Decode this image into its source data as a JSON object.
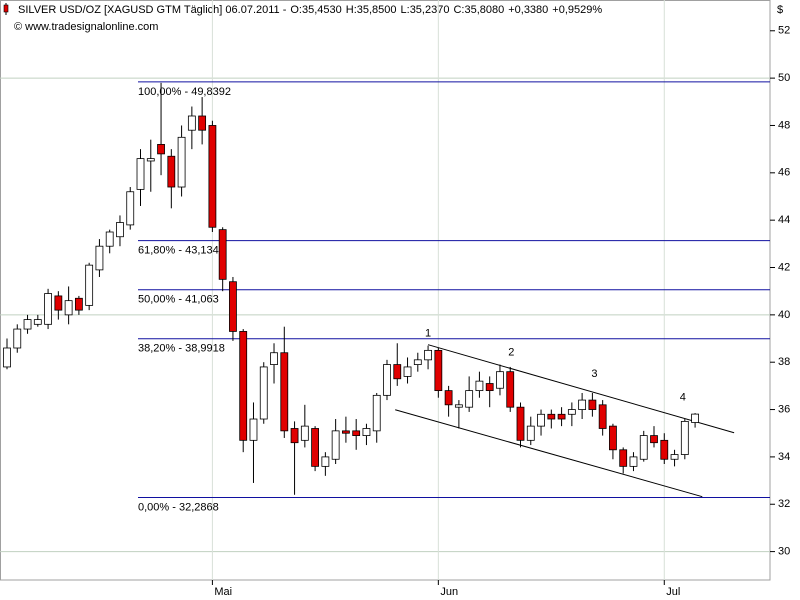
{
  "chart_data": {
    "type": "candlestick",
    "title": "SILVER USD/OZ [XAGUSD GTM  Täglich] 06.07.2011 -",
    "stats": [
      {
        "text": "O:35,4530",
        "color": "#00a000"
      },
      {
        "text": "H:35,8500",
        "color": "#000000"
      },
      {
        "text": "L:35,2370",
        "color": "#000000"
      },
      {
        "text": "C:35,8080",
        "color": "#e00000"
      },
      {
        "text": "+0,3380",
        "color": "#00a000"
      },
      {
        "text": "+0,9529%",
        "color": "#00a000"
      }
    ],
    "watermark": "© www.tradesignalonline.com",
    "currency": "$",
    "categories": [
      null,
      null,
      null,
      null,
      null,
      null,
      null,
      null,
      null,
      null,
      null,
      null,
      null,
      null,
      null,
      null,
      null,
      null,
      null,
      null,
      "Mai",
      null,
      null,
      null,
      null,
      null,
      null,
      null,
      null,
      null,
      null,
      null,
      null,
      null,
      null,
      null,
      null,
      null,
      null,
      null,
      null,
      null,
      "Jun",
      null,
      null,
      null,
      null,
      null,
      null,
      null,
      null,
      null,
      null,
      null,
      null,
      null,
      null,
      null,
      null,
      null,
      null,
      null,
      null,
      null,
      "Jul",
      null,
      null,
      null
    ],
    "open": [
      37.8,
      38.6,
      39.4,
      39.6,
      39.6,
      40.8,
      40.0,
      40.7,
      40.4,
      41.9,
      42.9,
      43.3,
      43.8,
      45.3,
      46.5,
      47.2,
      46.7,
      45.4,
      47.8,
      48.4,
      48.0,
      43.6,
      41.4,
      39.3,
      34.7,
      35.6,
      37.9,
      38.4,
      35.2,
      34.7,
      35.2,
      33.6,
      33.9,
      35.1,
      35.1,
      34.9,
      35.1,
      36.6,
      37.9,
      37.4,
      37.9,
      38.1,
      38.5,
      36.8,
      36.1,
      36.1,
      36.8,
      37.1,
      36.9,
      37.6,
      36.1,
      34.7,
      35.3,
      35.8,
      35.8,
      35.8,
      36.0,
      36.4,
      36.2,
      35.3,
      34.3,
      33.6,
      33.9,
      34.9,
      34.7,
      33.9,
      34.1,
      35.453
    ],
    "high": [
      39.0,
      39.6,
      40.0,
      40.0,
      41.1,
      41.0,
      41.2,
      40.8,
      42.2,
      43.2,
      43.6,
      44.2,
      45.4,
      47.0,
      47.4,
      49.8,
      47.0,
      48.0,
      48.8,
      49.2,
      48.2,
      43.7,
      41.6,
      39.4,
      36.3,
      38.0,
      38.8,
      39.5,
      35.5,
      36.2,
      35.3,
      34.2,
      35.6,
      35.7,
      35.6,
      35.4,
      36.7,
      38.1,
      38.8,
      38.2,
      38.4,
      38.7,
      38.6,
      37.0,
      36.4,
      37.4,
      37.6,
      37.4,
      37.9,
      37.8,
      36.3,
      35.7,
      36.0,
      36.0,
      36.1,
      36.3,
      36.7,
      36.7,
      36.4,
      35.4,
      34.4,
      34.2,
      35.1,
      35.3,
      35.0,
      34.3,
      35.6,
      35.85
    ],
    "low": [
      37.7,
      38.4,
      39.2,
      39.5,
      39.4,
      39.8,
      39.6,
      40.0,
      40.2,
      41.6,
      42.6,
      42.9,
      43.6,
      44.6,
      45.2,
      45.9,
      44.5,
      45.0,
      47.0,
      47.2,
      43.5,
      41.0,
      38.9,
      34.2,
      32.9,
      35.4,
      37.1,
      34.8,
      32.4,
      34.4,
      33.4,
      33.2,
      33.7,
      34.6,
      34.3,
      34.5,
      34.6,
      36.4,
      37.0,
      37.1,
      37.6,
      37.7,
      36.5,
      35.7,
      35.2,
      35.9,
      36.5,
      36.1,
      36.6,
      35.9,
      34.4,
      34.5,
      34.9,
      35.2,
      35.3,
      35.3,
      35.6,
      35.7,
      34.9,
      33.9,
      33.3,
      33.4,
      33.8,
      34.4,
      33.7,
      33.6,
      33.9,
      35.237
    ],
    "close": [
      38.6,
      39.4,
      39.8,
      39.8,
      40.9,
      40.2,
      40.6,
      40.2,
      42.1,
      42.9,
      43.5,
      43.9,
      45.2,
      46.6,
      46.6,
      46.8,
      45.4,
      47.5,
      48.4,
      47.8,
      43.7,
      41.5,
      39.3,
      34.7,
      35.6,
      37.8,
      38.4,
      35.1,
      34.6,
      35.3,
      33.6,
      34.0,
      35.1,
      35.0,
      34.9,
      35.2,
      36.6,
      37.9,
      37.3,
      37.8,
      38.1,
      38.5,
      36.8,
      36.2,
      36.2,
      36.8,
      37.2,
      36.8,
      37.6,
      36.1,
      34.7,
      35.3,
      35.8,
      35.6,
      35.6,
      36.0,
      36.4,
      36.0,
      35.2,
      34.3,
      33.6,
      34.0,
      34.9,
      34.6,
      33.9,
      34.1,
      35.5,
      35.808
    ],
    "up_color": "#ffffff",
    "down_color": "#e00000",
    "ylim": [
      28.8,
      53.3
    ],
    "yticks": [
      30,
      32,
      34,
      36,
      38,
      40,
      42,
      44,
      46,
      48,
      50,
      52
    ],
    "gridlines": [
      30,
      40,
      50
    ],
    "fibonacci": [
      {
        "value": 49.8392,
        "label": "100,00% - 49,8392"
      },
      {
        "value": 43.1342,
        "label": "61,80% - 43,1342"
      },
      {
        "value": 41.063,
        "label": "50,00% - 41,063"
      },
      {
        "value": 38.9918,
        "label": "38,20% - 38,9918"
      },
      {
        "value": 32.2868,
        "label": "0,00% - 32,2868"
      }
    ],
    "trendlines": [
      {
        "x": [
          41,
          70.8
        ],
        "y": [
          38.74,
          35.02
        ]
      },
      {
        "x": [
          37.8,
          67.7
        ],
        "y": [
          35.99,
          32.32
        ]
      }
    ],
    "annotations": [
      {
        "text": "1",
        "x": 41,
        "y": 39.2
      },
      {
        "text": "2",
        "x": 49.1,
        "y": 38.4
      },
      {
        "text": "3",
        "x": 57.2,
        "y": 37.5
      },
      {
        "text": "4",
        "x": 65.8,
        "y": 36.5
      }
    ]
  }
}
